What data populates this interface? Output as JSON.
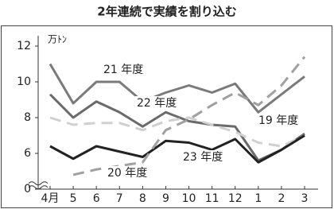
{
  "chart_data": {
    "type": "line",
    "title": "2年連続で実績を割り込む",
    "y_label": "万ﾄﾝ",
    "categories": [
      "4月",
      "5",
      "6",
      "7",
      "8",
      "9",
      "10",
      "11",
      "12",
      "1",
      "2",
      "3"
    ],
    "ylim": [
      0,
      12
    ],
    "yticks": [
      0,
      6,
      8,
      10,
      12
    ],
    "axis_break": [
      0,
      4.5
    ],
    "series": [
      {
        "name": "21 年度",
        "color": "#7a7a7a",
        "dashed": false,
        "values": [
          11.0,
          8.8,
          10.0,
          10.0,
          8.9,
          9.4,
          9.8,
          9.4,
          9.9,
          8.3,
          9.3,
          10.3
        ]
      },
      {
        "name": "22 年度",
        "color": "#6a6a6a",
        "dashed": false,
        "values": [
          9.3,
          8.0,
          8.9,
          8.3,
          7.5,
          8.3,
          7.8,
          7.6,
          7.5,
          5.6,
          6.2,
          7.1
        ]
      },
      {
        "name": "19 年度",
        "color": "#d0d0d0",
        "dashed": true,
        "values": [
          8.0,
          7.6,
          7.7,
          7.7,
          7.3,
          7.8,
          8.0,
          7.6,
          7.2,
          6.6,
          6.4,
          7.0
        ]
      },
      {
        "name": "23 年度",
        "color": "#222222",
        "dashed": false,
        "values": [
          6.4,
          5.7,
          6.4,
          6.1,
          5.8,
          6.7,
          6.6,
          6.2,
          6.8,
          5.5,
          6.2,
          7.0
        ]
      },
      {
        "name": "20 年度",
        "color": "#a0a0a0",
        "dashed": true,
        "values": [
          null,
          4.8,
          5.1,
          5.3,
          5.5,
          7.3,
          7.9,
          8.7,
          9.4,
          8.7,
          9.8,
          11.4
        ]
      }
    ]
  }
}
